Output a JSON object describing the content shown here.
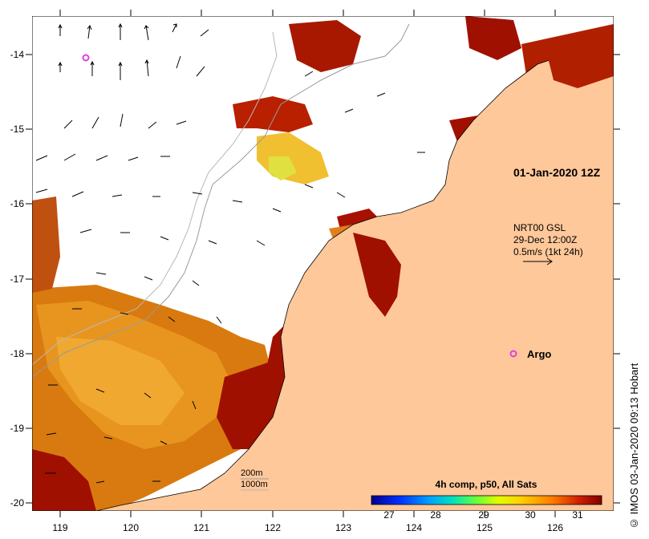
{
  "map": {
    "lon_ticks": [
      "119",
      "120",
      "121",
      "122",
      "123",
      "124",
      "125",
      "126"
    ],
    "lat_ticks": [
      "-14",
      "-15",
      "-16",
      "-17",
      "-18",
      "-19",
      "-20"
    ],
    "date_label": "01-Jan-2020 12Z",
    "current_legend": {
      "line1": "NRT00 GSL",
      "line2": "29-Dec 12:00Z",
      "line3": "0.5m/s (1kt 24h)"
    },
    "argo_label": "Argo",
    "depth_legend": {
      "line1": "200m",
      "line2": "1000m"
    },
    "colorbar": {
      "title": "4h comp, p50, All Sats",
      "ticks": [
        "27",
        "28",
        "29",
        "30",
        "31"
      ]
    },
    "credit": "© IMOS 03-Jan-2020 09:13 Hobart",
    "colors": {
      "land": "#ffc89a",
      "argo": "#e040e0",
      "hot": "#a01000",
      "warm": "#d86a00"
    }
  }
}
